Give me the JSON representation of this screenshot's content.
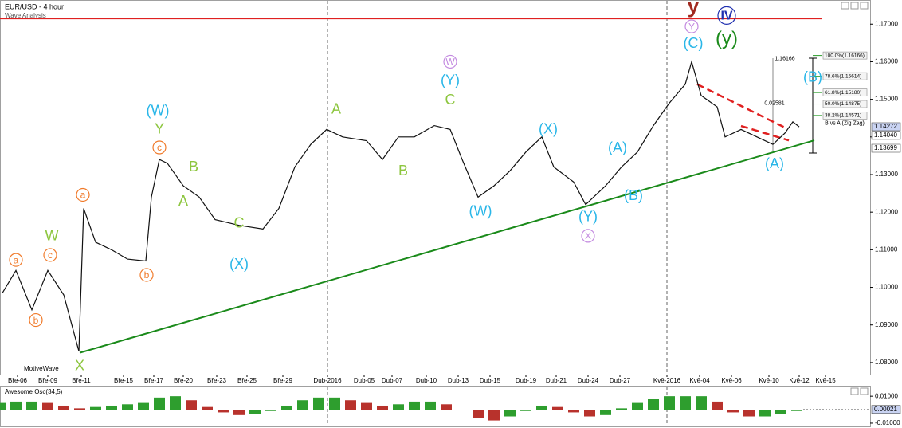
{
  "chart_data": {
    "type": "line",
    "title": "EUR/USD - 4 hour",
    "subtitle": "Wave Analysis",
    "source": "MotiveWave",
    "color": "#111111",
    "x": [
      0.3,
      2,
      4,
      6,
      8,
      9.9,
      10.5,
      12,
      14,
      16,
      18.3,
      19,
      20,
      21,
      23,
      25,
      27,
      30,
      33,
      35,
      37,
      39,
      41,
      43,
      46,
      48,
      50,
      52,
      54.5,
      56.5,
      58,
      60,
      62,
      64,
      66,
      68,
      69.5,
      72,
      73.5,
      76,
      78,
      80,
      82,
      84,
      86,
      86.8,
      88,
      90,
      91,
      93,
      95,
      97,
      98.5,
      99.5,
      100.3
    ],
    "values": [
      1.0985,
      1.1045,
      1.094,
      1.1045,
      1.098,
      1.083,
      1.121,
      1.112,
      1.11,
      1.1075,
      1.107,
      1.124,
      1.134,
      1.133,
      1.127,
      1.124,
      1.118,
      1.1165,
      1.1155,
      1.121,
      1.132,
      1.138,
      1.142,
      1.14,
      1.139,
      1.134,
      1.14,
      1.14,
      1.143,
      1.142,
      1.134,
      1.124,
      1.127,
      1.131,
      1.136,
      1.14,
      1.132,
      1.128,
      1.122,
      1.127,
      1.132,
      1.136,
      1.143,
      1.149,
      1.154,
      1.16,
      1.151,
      1.148,
      1.14,
      1.142,
      1.14,
      1.138,
      1.141,
      1.144,
      1.1427
    ],
    "xlim": [
      0,
      109.2
    ],
    "ylim": [
      1.0768,
      1.1762
    ],
    "xticks": [
      {
        "value": 2.2,
        "label": "Bře-06"
      },
      {
        "value": 6.0,
        "label": "Bře-09"
      },
      {
        "value": 10.2,
        "label": "Bře-11"
      },
      {
        "value": 15.5,
        "label": "Bře-15"
      },
      {
        "value": 19.3,
        "label": "Bře-17"
      },
      {
        "value": 23.0,
        "label": "Bře-20"
      },
      {
        "value": 27.2,
        "label": "Bře-23"
      },
      {
        "value": 31.0,
        "label": "Bře-25"
      },
      {
        "value": 35.5,
        "label": "Bře-29"
      },
      {
        "value": 41.1,
        "label": "Dub-2016"
      },
      {
        "value": 45.7,
        "label": "Dub-05"
      },
      {
        "value": 49.2,
        "label": "Dub-07"
      },
      {
        "value": 53.5,
        "label": "Dub-10"
      },
      {
        "value": 57.5,
        "label": "Dub-13"
      },
      {
        "value": 61.5,
        "label": "Dub-15"
      },
      {
        "value": 66.0,
        "label": "Dub-19"
      },
      {
        "value": 69.8,
        "label": "Dub-21"
      },
      {
        "value": 73.8,
        "label": "Dub-24"
      },
      {
        "value": 77.8,
        "label": "Dub-27"
      },
      {
        "value": 83.7,
        "label": "Kvě-2016"
      },
      {
        "value": 87.8,
        "label": "Kvě-04"
      },
      {
        "value": 91.8,
        "label": "Kvě-06"
      },
      {
        "value": 96.5,
        "label": "Kvě-10"
      },
      {
        "value": 100.3,
        "label": "Kvě-12"
      },
      {
        "value": 103.6,
        "label": "Kvě-15"
      }
    ],
    "yticks": [
      {
        "value": 1.08,
        "label": "1.08000"
      },
      {
        "value": 1.09,
        "label": "1.09000"
      },
      {
        "value": 1.1,
        "label": "1.10000"
      },
      {
        "value": 1.11,
        "label": "1.11000"
      },
      {
        "value": 1.12,
        "label": "1.12000"
      },
      {
        "value": 1.13,
        "label": "1.13000"
      },
      {
        "value": 1.14,
        "label": "1.14000"
      },
      {
        "value": 1.15,
        "label": "1.15000"
      },
      {
        "value": 1.16,
        "label": "1.16000"
      },
      {
        "value": 1.17,
        "label": "1.17000"
      }
    ],
    "price_markers": [
      {
        "value": 1.14272,
        "label": "1.14272",
        "color": "#c9d3f2"
      },
      {
        "value": 1.1404,
        "label": "1.14040",
        "color": "#ffffff"
      },
      {
        "value": 1.13699,
        "label": "1.13699",
        "color": "#ffffff"
      }
    ],
    "trendlines": [
      {
        "x": [
          0,
          103.2
        ],
        "y": [
          1.1715,
          1.1715
        ],
        "color": "#e02020",
        "dash": false
      },
      {
        "x": [
          10,
          102.2
        ],
        "y": [
          1.0826,
          1.1391
        ],
        "color": "#1a8a1a",
        "dash": false
      },
      {
        "x": [
          87.5,
          98.5
        ],
        "y": [
          1.15401,
          1.1425
        ],
        "color": "#e02020",
        "dash": true
      },
      {
        "x": [
          93,
          99
        ],
        "y": [
          1.14292,
          1.13908
        ],
        "color": "#e02020",
        "dash": true
      }
    ],
    "fib_levels": [
      {
        "value": 1.16166,
        "label": "100.0%(1.16166)"
      },
      {
        "value": 1.15614,
        "label": "78.6%(1.15614)"
      },
      {
        "value": 1.1518,
        "label": "61.8%(1.15180)"
      },
      {
        "value": 1.14875,
        "label": "50.0%(1.14875)"
      },
      {
        "value": 1.14571,
        "label": "38.2%(1.14571)"
      }
    ],
    "notes": [
      {
        "text": "1.16166",
        "x": 98.5,
        "y": 1.1608
      },
      {
        "text": "0.02581",
        "x": 97.2,
        "y": 1.1489
      },
      {
        "text": "B vs A (Zig Zag)",
        "x": 106.0,
        "y": 1.1436
      }
    ],
    "annotations": [
      {
        "text": "a",
        "x": 2.0,
        "y": 1.1073,
        "color": "#f07a2a",
        "circled": true
      },
      {
        "text": "b",
        "x": 4.5,
        "y": 1.0913,
        "color": "#f07a2a",
        "circled": true
      },
      {
        "text": "c",
        "x": 6.3,
        "y": 1.1086,
        "color": "#f07a2a",
        "circled": true
      },
      {
        "text": "W",
        "x": 6.5,
        "y": 1.1135,
        "color": "#8dc63f",
        "circled": false
      },
      {
        "text": "a",
        "x": 10.4,
        "y": 1.1246,
        "color": "#f07a2a",
        "circled": true
      },
      {
        "text": "c",
        "x": 20.0,
        "y": 1.1372,
        "color": "#f07a2a",
        "circled": true
      },
      {
        "text": "b",
        "x": 18.4,
        "y": 1.1033,
        "color": "#f07a2a",
        "circled": true
      },
      {
        "text": "(W)",
        "x": 19.8,
        "y": 1.1468,
        "color": "#29b6e8",
        "circled": false
      },
      {
        "text": "Y",
        "x": 20.0,
        "y": 1.1419,
        "color": "#8dc63f",
        "circled": false
      },
      {
        "text": "B",
        "x": 24.3,
        "y": 1.1318,
        "color": "#8dc63f",
        "circled": false
      },
      {
        "text": "A",
        "x": 23.0,
        "y": 1.1227,
        "color": "#8dc63f",
        "circled": false
      },
      {
        "text": "C",
        "x": 30.0,
        "y": 1.1169,
        "color": "#8dc63f",
        "circled": false
      },
      {
        "text": "(X)",
        "x": 30.0,
        "y": 1.106,
        "color": "#29b6e8",
        "circled": false
      },
      {
        "text": "A",
        "x": 42.2,
        "y": 1.1472,
        "color": "#8dc63f",
        "circled": false
      },
      {
        "text": "B",
        "x": 50.6,
        "y": 1.1308,
        "color": "#8dc63f",
        "circled": false
      },
      {
        "text": "C",
        "x": 56.5,
        "y": 1.1497,
        "color": "#8dc63f",
        "circled": false
      },
      {
        "text": "W",
        "x": 56.5,
        "y": 1.16,
        "color": "#c38ae0",
        "circled": true
      },
      {
        "text": "(Y)",
        "x": 56.5,
        "y": 1.1549,
        "color": "#29b6e8",
        "circled": false
      },
      {
        "text": "(W)",
        "x": 60.3,
        "y": 1.1201,
        "color": "#29b6e8",
        "circled": false
      },
      {
        "text": "(X)",
        "x": 68.8,
        "y": 1.1419,
        "color": "#29b6e8",
        "circled": false
      },
      {
        "text": "(A)",
        "x": 77.5,
        "y": 1.1369,
        "color": "#29b6e8",
        "circled": false
      },
      {
        "text": "(B)",
        "x": 79.5,
        "y": 1.1242,
        "color": "#29b6e8",
        "circled": false
      },
      {
        "text": "(Y)",
        "x": 73.8,
        "y": 1.1186,
        "color": "#29b6e8",
        "circled": false
      },
      {
        "text": "X",
        "x": 73.8,
        "y": 1.1137,
        "color": "#c38ae0",
        "circled": true
      },
      {
        "text": "X",
        "x": 10.0,
        "y": 1.079,
        "color": "#8dc63f",
        "circled": false
      },
      {
        "text": "y",
        "x": 87.0,
        "y": 1.1745,
        "color": "#a0281e",
        "circled": false
      },
      {
        "text": "IV",
        "x": 91.2,
        "y": 1.1723,
        "color": "#1f2fb0",
        "circled": true
      },
      {
        "text": "Y",
        "x": 86.8,
        "y": 1.1694,
        "color": "#c38ae0",
        "circled": true
      },
      {
        "text": "(C)",
        "x": 87.0,
        "y": 1.1647,
        "color": "#29b6e8",
        "circled": false
      },
      {
        "text": "(y)",
        "x": 91.2,
        "y": 1.1659,
        "color": "#1a8a1a",
        "circled": false
      },
      {
        "text": "(B)",
        "x": 102.0,
        "y": 1.1557,
        "color": "#29b6e8",
        "circled": false
      },
      {
        "text": "(A)",
        "x": 97.2,
        "y": 1.1327,
        "color": "#29b6e8",
        "circled": false
      }
    ],
    "oscillator": {
      "type": "bar",
      "title": "Awesome Osc(34,5)",
      "up_color": "#2e9e2e",
      "down_color": "#b8322c",
      "x": [
        0,
        2,
        4,
        6,
        8,
        10,
        12,
        14,
        16,
        18,
        20,
        22,
        24,
        26,
        28,
        30,
        32,
        34,
        36,
        38,
        40,
        42,
        44,
        46,
        48,
        50,
        52,
        54,
        56,
        58,
        60,
        62,
        64,
        66,
        68,
        70,
        72,
        74,
        76,
        78,
        80,
        82,
        84,
        86,
        88,
        90,
        92,
        94,
        96,
        98,
        100
      ],
      "values": [
        0.005,
        0.006,
        0.006,
        0.005,
        0.003,
        0.001,
        0.002,
        0.003,
        0.004,
        0.005,
        0.009,
        0.01,
        0.007,
        0.002,
        -0.002,
        -0.004,
        -0.003,
        -0.001,
        0.003,
        0.007,
        0.009,
        0.009,
        0.007,
        0.005,
        0.003,
        0.004,
        0.006,
        0.006,
        0.004,
        0.0,
        -0.006,
        -0.008,
        -0.005,
        -0.001,
        0.003,
        0.002,
        -0.002,
        -0.005,
        -0.004,
        0.001,
        0.005,
        0.008,
        0.01,
        0.01,
        0.01,
        0.006,
        -0.002,
        -0.005,
        -0.005,
        -0.003,
        -0.001
      ],
      "ylim": [
        -0.0118,
        0.0166
      ],
      "yticks": [
        {
          "value": 0.01,
          "label": "0.01000"
        },
        {
          "value": -0.01,
          "label": "-0.01000"
        }
      ],
      "marker": {
        "value": 0.00021,
        "label": "0.00021"
      }
    }
  }
}
